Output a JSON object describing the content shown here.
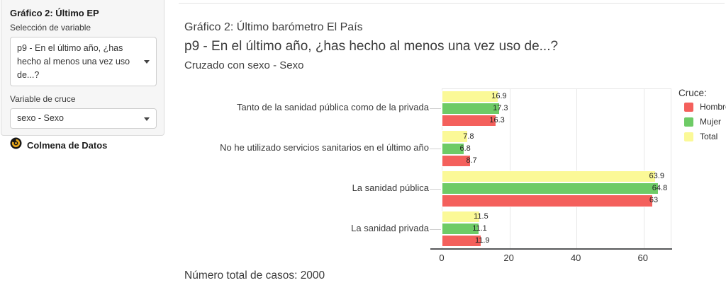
{
  "sidebar": {
    "title": "Gráfico 2: Último EP",
    "variable_label": "Selección de variable",
    "variable_value": "p9 - En el último año, ¿has hecho al menos una vez uso de...?",
    "cross_label": "Variable de cruce",
    "cross_value": "sexo - Sexo",
    "brand": "Colmena de Datos"
  },
  "main": {
    "title": "Gráfico 2: Último barómetro El País",
    "subtitle": "p9 - En el último año, ¿has hecho al menos una vez uso de...?",
    "cross_note": "Cruzado con sexo - Sexo",
    "total_note": "Número total de casos: 2000"
  },
  "chart_data": {
    "type": "bar",
    "orientation": "horizontal",
    "title": "p9 - En el último año, ¿has hecho al menos una vez uso de...?",
    "categories": [
      "Tanto de la sanidad pública como de la privada",
      "No he utilizado servicios sanitarios en el último año",
      "La sanidad pública",
      "La sanidad privada"
    ],
    "series": [
      {
        "name": "Hombre",
        "color": "#f4605c",
        "values": [
          16.3,
          8.7,
          63,
          11.9
        ]
      },
      {
        "name": "Mujer",
        "color": "#6ecb66",
        "values": [
          17.3,
          6.8,
          64.8,
          11.1
        ]
      },
      {
        "name": "Total",
        "color": "#fbf997",
        "values": [
          16.9,
          7.8,
          63.9,
          11.5
        ]
      }
    ],
    "bar_order_top_to_bottom": [
      "Total",
      "Mujer",
      "Hombre"
    ],
    "legend_title": "Cruce:",
    "legend_position": "right",
    "xlabel": "",
    "ylabel": "",
    "xlim": [
      0,
      68.5
    ],
    "xticks": [
      0,
      20,
      40,
      60
    ],
    "grid": true,
    "value_labels": true,
    "grid_color": "#e7e7e7",
    "axis_color": "#57585a"
  }
}
